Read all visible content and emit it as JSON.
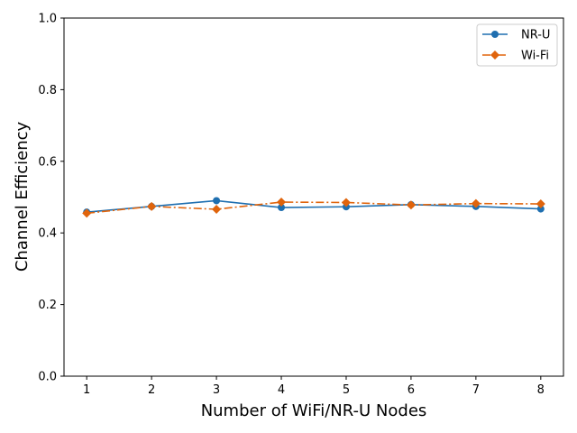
{
  "chart_data": {
    "type": "line",
    "xlabel": "Number of WiFi/NR-U Nodes",
    "ylabel": "Channel Efficiency",
    "x": [
      1,
      2,
      3,
      4,
      5,
      6,
      7,
      8
    ],
    "xticks": [
      "1",
      "2",
      "3",
      "4",
      "5",
      "6",
      "7",
      "8"
    ],
    "ylim": [
      0,
      1
    ],
    "yticks": [
      "0.0",
      "0.2",
      "0.4",
      "0.6",
      "0.8",
      "1.0"
    ],
    "grid": false,
    "legend_position": "top-right",
    "series": [
      {
        "name": "NR-U",
        "values": [
          0.458,
          0.474,
          0.49,
          0.471,
          0.473,
          0.479,
          0.474,
          0.467
        ],
        "color": "#1f6fb0",
        "marker": "circle",
        "linestyle": "solid"
      },
      {
        "name": "Wi-Fi",
        "values": [
          0.455,
          0.474,
          0.466,
          0.486,
          0.485,
          0.478,
          0.482,
          0.481
        ],
        "color": "#e0640c",
        "marker": "diamond",
        "linestyle": "dashdot"
      }
    ]
  }
}
